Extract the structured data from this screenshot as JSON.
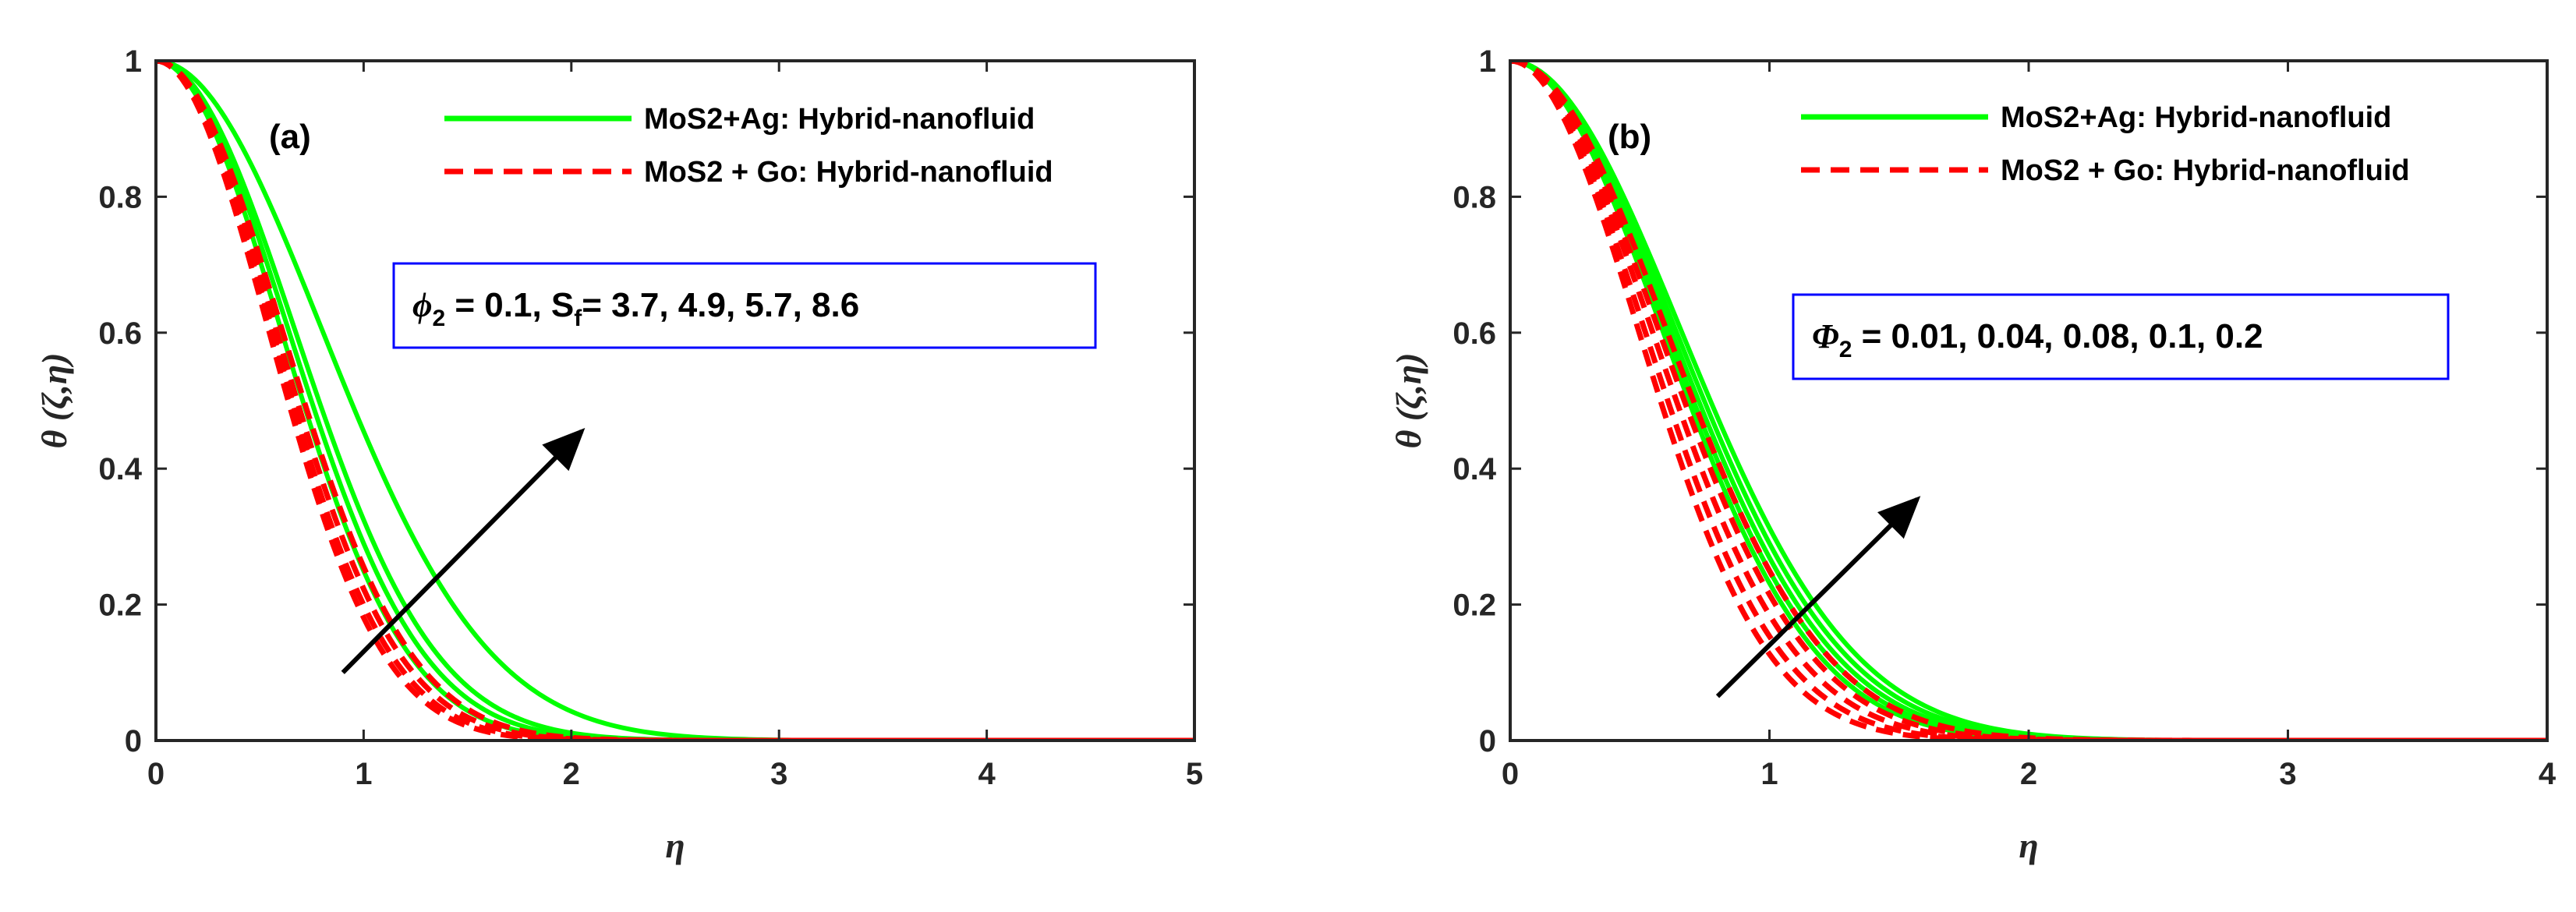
{
  "chart_data": [
    {
      "type": "line",
      "panel_label": "(a)",
      "xlabel": "η",
      "ylabel": "θ (ζ,η)",
      "xlim": [
        0,
        5
      ],
      "ylim": [
        0,
        1
      ],
      "xticks": [
        "0",
        "1",
        "2",
        "3",
        "4",
        "5"
      ],
      "yticks": [
        "0",
        "0.2",
        "0.4",
        "0.6",
        "0.8",
        "1"
      ],
      "legend": {
        "position": "top-right",
        "entries": [
          "MoS2+Ag: Hybrid-nanofluid",
          "MoS2 + Go: Hybrid-nanofluid"
        ]
      },
      "annotation": {
        "symbol": "ϕ",
        "subscript": "2",
        "text_a": " = 0.1, S",
        "subscript2": "f",
        "text_b": "= 3.7, 4.9, 5.7, 8.6"
      },
      "arrow": {
        "from": [
          0.9,
          0.1
        ],
        "to": [
          2.05,
          0.455
        ]
      },
      "series": [
        {
          "name": "MoS2+Ag: Hybrid-nanofluid",
          "style": "solid",
          "color": "#00ff00",
          "decay_rate": [
            1.05,
            1.5,
            1.65,
            1.85
          ],
          "labels": [
            "S_f = 8.6",
            "S_f = 5.7",
            "S_f = 4.9",
            "S_f = 3.7"
          ]
        },
        {
          "name": "MoS2 + Go: Hybrid-nanofluid",
          "style": "dashed",
          "color": "#ff0000",
          "decay_rate": [
            1.82,
            2.0,
            2.15,
            2.28
          ],
          "labels": [
            "S_f = 8.6",
            "S_f = 5.7",
            "S_f = 4.9",
            "S_f = 3.7"
          ]
        }
      ]
    },
    {
      "type": "line",
      "panel_label": "(b)",
      "xlabel": "η",
      "ylabel": "θ (ζ,η)",
      "xlim": [
        0,
        4
      ],
      "ylim": [
        0,
        1
      ],
      "xticks": [
        "0",
        "1",
        "2",
        "3",
        "4"
      ],
      "yticks": [
        "0",
        "0.2",
        "0.4",
        "0.6",
        "0.8",
        "1"
      ],
      "legend": {
        "position": "top-right",
        "entries": [
          "MoS2+Ag: Hybrid-nanofluid",
          "MoS2 + Go: Hybrid-nanofluid"
        ]
      },
      "annotation": {
        "symbol": "Φ",
        "subscript": "2",
        "text_a": " = 0.01, 0.04, 0.08, 0.1, 0.2",
        "subscript2": "",
        "text_b": ""
      },
      "arrow": {
        "from": [
          0.8,
          0.065
        ],
        "to": [
          1.57,
          0.355
        ]
      },
      "series": [
        {
          "name": "MoS2+Ag: Hybrid-nanofluid",
          "style": "solid",
          "color": "#00ff00",
          "decay_rate": [
            1.55,
            1.65,
            1.75,
            1.85,
            1.95
          ],
          "labels": [
            "Φ2 = 0.2",
            "Φ2 = 0.1",
            "Φ2 = 0.08",
            "Φ2 = 0.04",
            "Φ2 = 0.01"
          ]
        },
        {
          "name": "MoS2 + Go: Hybrid-nanofluid",
          "style": "dashed",
          "color": "#ff0000",
          "decay_rate": [
            1.85,
            2.05,
            2.25,
            2.5,
            2.75
          ],
          "labels": [
            "Φ2 = 0.2",
            "Φ2 = 0.1",
            "Φ2 = 0.08",
            "Φ2 = 0.04",
            "Φ2 = 0.01"
          ]
        }
      ]
    }
  ]
}
